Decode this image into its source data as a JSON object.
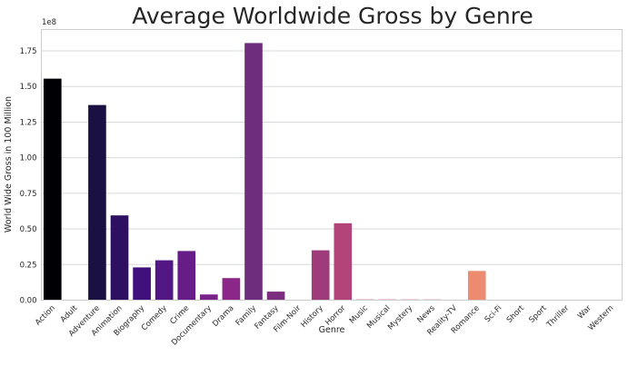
{
  "chart_data": {
    "type": "bar",
    "title": "Average Worldwide Gross by Genre",
    "xlabel": "Genre",
    "ylabel": "World Wide Gross in 100 Million",
    "y_multiplier_label": "1e8",
    "ylim": [
      0,
      1.9
    ],
    "yticks": [
      "0.00",
      "0.25",
      "0.50",
      "0.75",
      "1.00",
      "1.25",
      "1.50",
      "1.75"
    ],
    "grid": true,
    "categories": [
      "Action",
      "Adult",
      "Adventure",
      "Animation",
      "Biography",
      "Comedy",
      "Crime",
      "Documentary",
      "Drama",
      "Family",
      "Fantasy",
      "Film-Noir",
      "History",
      "Horror",
      "Music",
      "Musical",
      "Mystery",
      "News",
      "Reality-TV",
      "Romance",
      "Sci-Fi",
      "Short",
      "Sport",
      "Thriller",
      "War",
      "Western"
    ],
    "values": [
      1.555,
      0,
      1.37,
      0.595,
      0.23,
      0.28,
      0.345,
      0.04,
      0.155,
      1.805,
      0.06,
      0,
      0.35,
      0.54,
      0.005,
      0.005,
      0.005,
      0.005,
      0.003,
      0.205,
      0.002,
      0,
      0,
      0,
      0,
      0
    ],
    "colors": [
      "#000004",
      "#0b0924",
      "#1b1042",
      "#2d1160",
      "#40117c",
      "#531785",
      "#661d87",
      "#78228a",
      "#8a2788",
      "#6f2d7e",
      "#7b2e7f",
      "#8b2f7f",
      "#9e3b7a",
      "#b34479",
      "#c6497a",
      "#d3567a",
      "#dd6477",
      "#e46f73",
      "#e97a72",
      "#ec8b6f",
      "#f09f72",
      "#f4b27a",
      "#f7c287",
      "#f9d396",
      "#fbe2a7",
      "#fcf1b9"
    ]
  }
}
